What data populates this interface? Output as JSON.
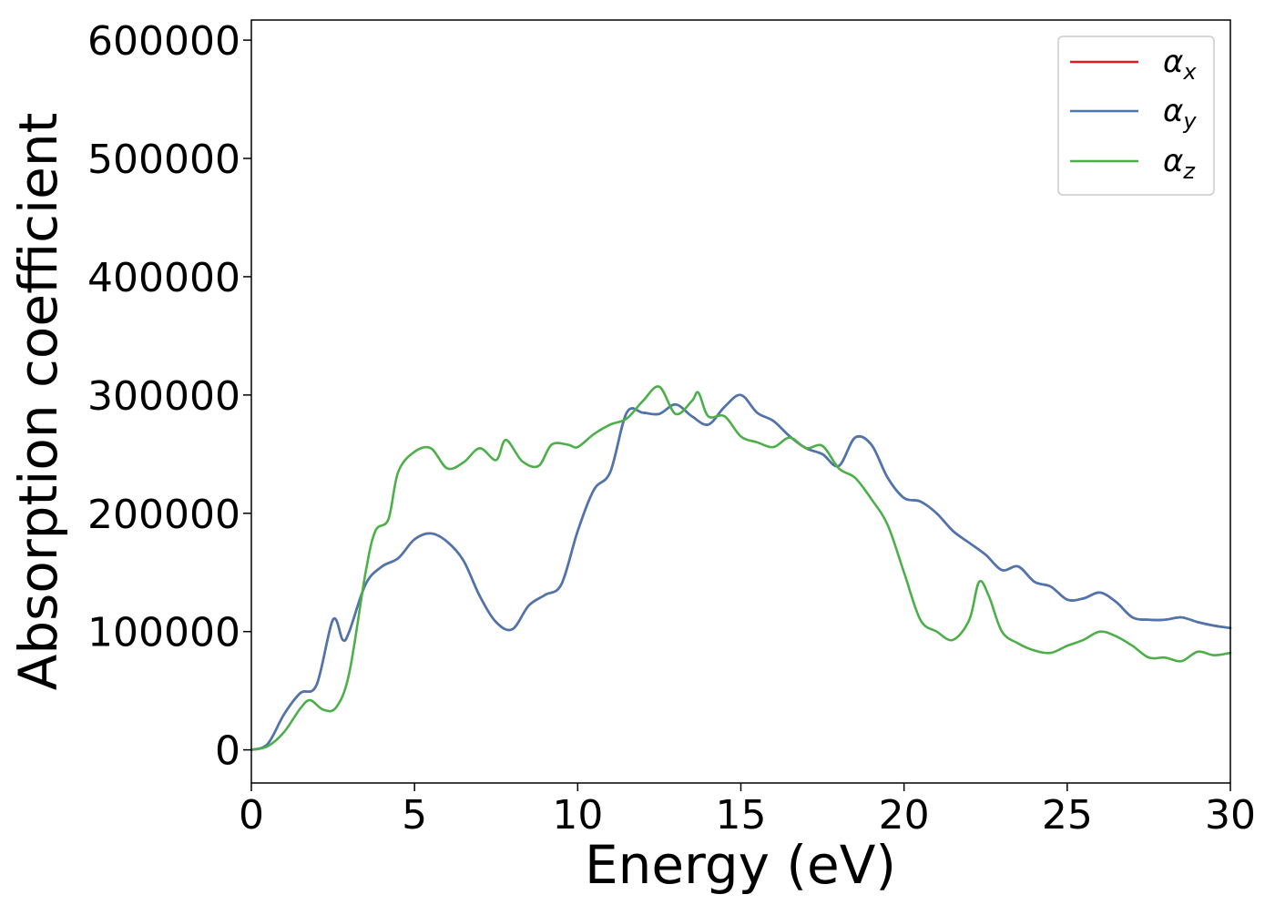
{
  "chart_data": {
    "type": "line",
    "xlabel": "Energy (eV)",
    "ylabel": "Absorption coefficient",
    "xlim": [
      0,
      30
    ],
    "ylim": [
      -28000,
      617000
    ],
    "xticks": [
      "0",
      "5",
      "10",
      "15",
      "20",
      "25",
      "30"
    ],
    "yticks": [
      "0",
      "100000",
      "200000",
      "300000",
      "400000",
      "500000",
      "600000"
    ],
    "grid": false,
    "legend_position": "top-right",
    "series": [
      {
        "name": "α_x",
        "label_main": "α",
        "label_sub": "x",
        "color": "#e41a1c",
        "x": [
          0,
          0.5,
          1,
          1.5,
          2,
          2.5,
          2.8,
          3,
          3.5,
          4,
          4.5,
          5,
          5.5,
          6,
          6.5,
          7,
          7.5,
          8,
          8.5,
          9,
          9.5,
          10,
          10.5,
          11,
          11.5,
          12,
          12.5,
          13,
          13.5,
          14,
          14.5,
          15,
          15.5,
          16,
          16.5,
          17,
          17.5,
          18,
          18.5,
          19,
          19.5,
          20,
          20.5,
          21,
          21.5,
          22,
          22.5,
          23,
          23.5,
          24,
          24.5,
          25,
          25.5,
          26,
          26.5,
          27,
          27.5,
          28,
          28.5,
          29,
          29.5,
          30
        ],
        "y": [
          0,
          5000,
          30000,
          48000,
          55000,
          110000,
          93000,
          100000,
          140000,
          155000,
          162000,
          178000,
          183000,
          176000,
          160000,
          130000,
          108000,
          102000,
          122000,
          131000,
          140000,
          185000,
          220000,
          235000,
          285000,
          285000,
          284000,
          292000,
          282000,
          275000,
          290000,
          300000,
          285000,
          278000,
          265000,
          255000,
          250000,
          240000,
          264000,
          258000,
          230000,
          213000,
          210000,
          200000,
          185000,
          175000,
          165000,
          152000,
          155000,
          142000,
          138000,
          127000,
          128000,
          133000,
          125000,
          112000,
          110000,
          110000,
          112000,
          108000,
          105000,
          103000
        ]
      },
      {
        "name": "α_y",
        "label_main": "α",
        "label_sub": "y",
        "color": "#4a77b0",
        "x": [
          0,
          0.5,
          1,
          1.5,
          2,
          2.5,
          2.8,
          3,
          3.5,
          4,
          4.5,
          5,
          5.5,
          6,
          6.5,
          7,
          7.5,
          8,
          8.5,
          9,
          9.5,
          10,
          10.5,
          11,
          11.5,
          12,
          12.5,
          13,
          13.5,
          14,
          14.5,
          15,
          15.5,
          16,
          16.5,
          17,
          17.5,
          18,
          18.5,
          19,
          19.5,
          20,
          20.5,
          21,
          21.5,
          22,
          22.5,
          23,
          23.5,
          24,
          24.5,
          25,
          25.5,
          26,
          26.5,
          27,
          27.5,
          28,
          28.5,
          29,
          29.5,
          30
        ],
        "y": [
          0,
          5000,
          30000,
          48000,
          55000,
          110000,
          93000,
          100000,
          140000,
          155000,
          162000,
          178000,
          183000,
          176000,
          160000,
          130000,
          108000,
          102000,
          122000,
          131000,
          140000,
          185000,
          220000,
          235000,
          285000,
          285000,
          284000,
          292000,
          282000,
          275000,
          290000,
          300000,
          285000,
          278000,
          265000,
          255000,
          250000,
          240000,
          264000,
          258000,
          230000,
          213000,
          210000,
          200000,
          185000,
          175000,
          165000,
          152000,
          155000,
          142000,
          138000,
          127000,
          128000,
          133000,
          125000,
          112000,
          110000,
          110000,
          112000,
          108000,
          105000,
          103000
        ]
      },
      {
        "name": "α_z",
        "label_main": "α",
        "label_sub": "z",
        "color": "#4daf4a",
        "x": [
          0,
          0.5,
          1,
          1.5,
          1.8,
          2.2,
          2.6,
          3,
          3.5,
          3.8,
          4.2,
          4.5,
          5,
          5.5,
          6,
          6.5,
          7,
          7.5,
          7.8,
          8.3,
          8.8,
          9.2,
          9.7,
          10,
          10.5,
          11,
          11.5,
          12,
          12.5,
          13,
          13.5,
          13.7,
          14,
          14.5,
          15,
          15.5,
          16,
          16.5,
          17,
          17.5,
          18,
          18.5,
          19,
          19.5,
          20,
          20.5,
          21,
          21.5,
          22,
          22.3,
          22.6,
          23,
          23.5,
          24,
          24.5,
          25,
          25.5,
          26,
          26.5,
          27,
          27.5,
          28,
          28.5,
          29,
          29.5,
          30
        ],
        "y": [
          0,
          3000,
          15000,
          35000,
          42000,
          34000,
          36000,
          65000,
          150000,
          185000,
          195000,
          235000,
          252000,
          255000,
          238000,
          243000,
          255000,
          245000,
          262000,
          244000,
          240000,
          258000,
          258000,
          256000,
          267000,
          275000,
          280000,
          295000,
          307000,
          284000,
          295000,
          302000,
          282000,
          282000,
          265000,
          260000,
          256000,
          264000,
          255000,
          257000,
          238000,
          230000,
          212000,
          190000,
          150000,
          110000,
          100000,
          93000,
          110000,
          142000,
          130000,
          100000,
          90000,
          84000,
          82000,
          88000,
          93000,
          100000,
          96000,
          88000,
          78000,
          78000,
          75000,
          83000,
          80000,
          82000
        ]
      }
    ]
  }
}
